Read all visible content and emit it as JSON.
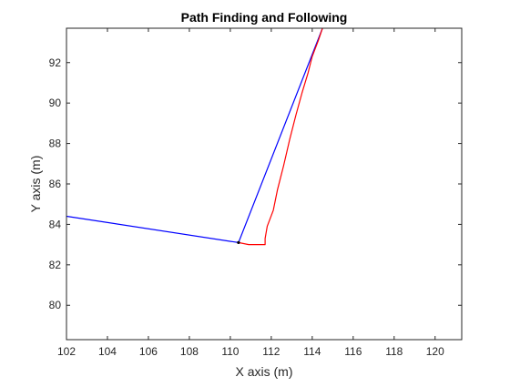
{
  "chart_data": {
    "type": "line",
    "title": "Path Finding and Following",
    "xlabel": "X axis (m)",
    "ylabel": "Y axis (m)",
    "xlim": [
      102,
      121.3
    ],
    "ylim": [
      78.3,
      93.7
    ],
    "xticks": [
      102,
      104,
      106,
      108,
      110,
      112,
      114,
      116,
      118,
      120
    ],
    "yticks": [
      80,
      82,
      84,
      86,
      88,
      90,
      92
    ],
    "grid": false,
    "legend": "none",
    "series": [
      {
        "color": "#0000ff",
        "x": [
          102.0,
          110.4,
          114.5
        ],
        "y": [
          84.4,
          83.1,
          93.7
        ]
      },
      {
        "color": "#ff0000",
        "x": [
          110.4,
          110.9,
          111.4,
          111.7,
          111.7,
          111.8,
          112.1,
          112.3,
          112.6,
          112.9,
          113.2,
          113.5,
          113.8,
          114.0,
          114.3,
          114.5
        ],
        "y": [
          83.1,
          83.0,
          83.0,
          83.0,
          83.3,
          83.9,
          84.7,
          85.7,
          86.9,
          88.2,
          89.4,
          90.5,
          91.5,
          92.3,
          93.1,
          93.7
        ]
      }
    ],
    "markers": [
      {
        "x": 110.4,
        "y": 83.1,
        "color": "#000000"
      }
    ]
  }
}
